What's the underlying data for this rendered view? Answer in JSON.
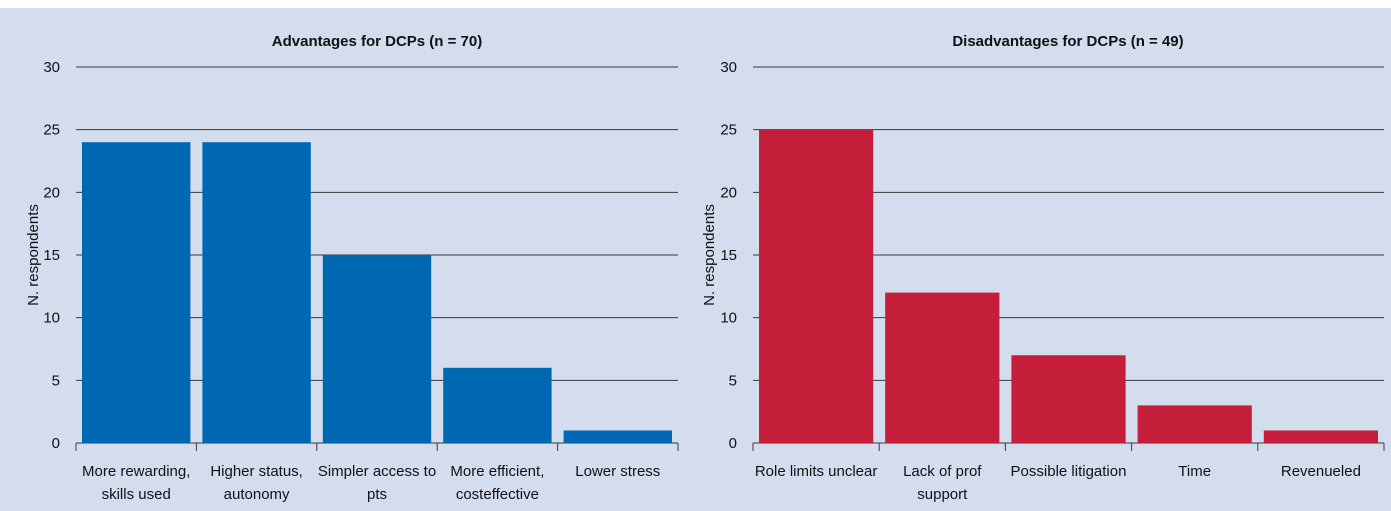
{
  "colors": {
    "background": "#d3ddee",
    "gridline": "#3a3a3a",
    "advantages_bar": "#0068b2",
    "disadvantages_bar": "#c41e3a"
  },
  "chart_data": [
    {
      "type": "bar",
      "title": "Advantages for DCPs (n = 70)",
      "ylabel": "N. respondents",
      "xlabel": "",
      "ylim": [
        0,
        30
      ],
      "yticks": [
        "0",
        "5",
        "10",
        "15",
        "20",
        "25",
        "30"
      ],
      "grid": true,
      "categories": [
        [
          "More rewarding,",
          "skills used"
        ],
        [
          "Higher status,",
          "autonomy"
        ],
        [
          "Simpler access to",
          "pts"
        ],
        [
          "More efficient,",
          "costeffective"
        ],
        [
          "Lower stress"
        ]
      ],
      "values": [
        24,
        24,
        15,
        6,
        1
      ],
      "color": "#0068b2"
    },
    {
      "type": "bar",
      "title": "Disadvantages for DCPs (n = 49)",
      "ylabel": "N. respondents",
      "xlabel": "",
      "ylim": [
        0,
        30
      ],
      "yticks": [
        "0",
        "5",
        "10",
        "15",
        "20",
        "25",
        "30"
      ],
      "grid": true,
      "categories": [
        [
          "Role limits unclear"
        ],
        [
          "Lack of prof",
          "support"
        ],
        [
          "Possible litigation"
        ],
        [
          "Time"
        ],
        [
          "Revenueled"
        ]
      ],
      "values": [
        25,
        12,
        7,
        3,
        1
      ],
      "color": "#c41e3a"
    }
  ]
}
